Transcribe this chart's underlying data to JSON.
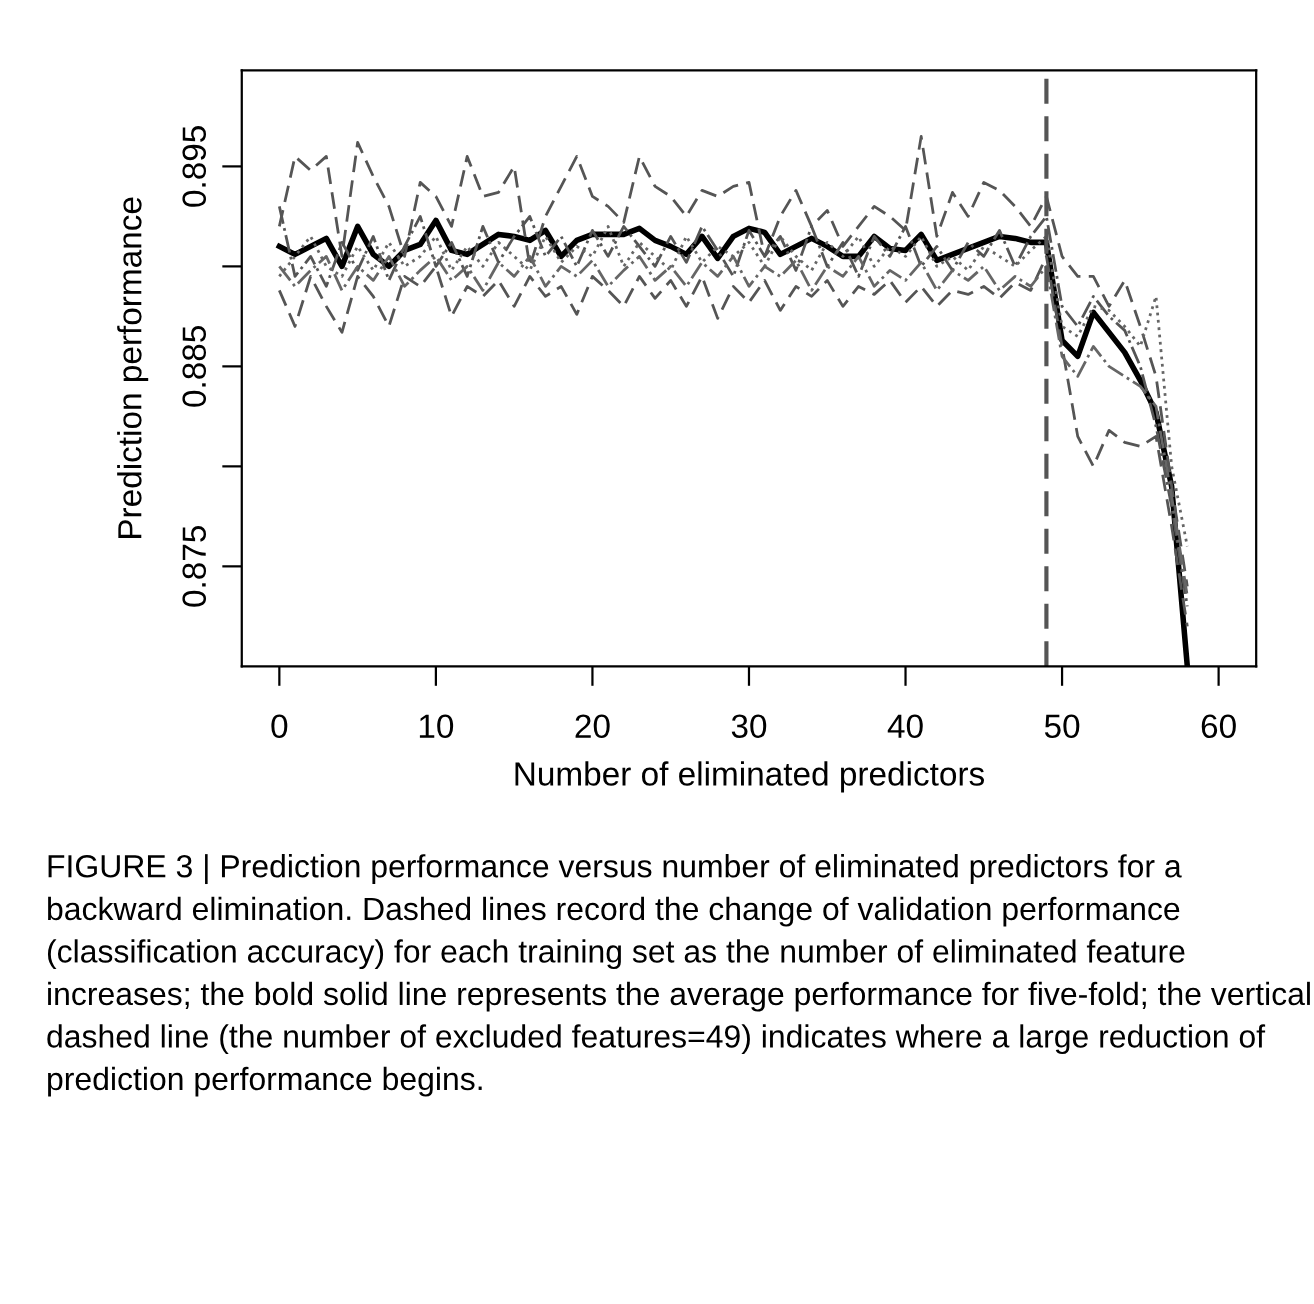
{
  "chart_data": {
    "type": "line",
    "xlabel": "Number of eliminated predictors",
    "ylabel": "Prediction performance",
    "x": [
      0,
      1,
      2,
      3,
      4,
      5,
      6,
      7,
      8,
      9,
      10,
      11,
      12,
      13,
      14,
      15,
      16,
      17,
      18,
      19,
      20,
      21,
      22,
      23,
      24,
      25,
      26,
      27,
      28,
      29,
      30,
      31,
      32,
      33,
      34,
      35,
      36,
      37,
      38,
      39,
      40,
      41,
      42,
      43,
      44,
      45,
      46,
      47,
      48,
      49,
      50,
      51,
      52,
      53,
      54,
      55,
      56,
      57,
      58
    ],
    "xlim": [
      -2.4,
      62.4
    ],
    "xticks": [
      0,
      10,
      20,
      30,
      40,
      50,
      60
    ],
    "ylim": [
      0.87,
      0.8998
    ],
    "yticks": [
      0.875,
      {
        "value": 0.88,
        "label": null
      },
      0.885,
      {
        "value": 0.89,
        "label": null
      },
      0.895
    ],
    "grid": false,
    "legend": false,
    "marker": "none",
    "series": [
      {
        "color": "#000000",
        "line_style": "solid",
        "values": [
          0.891,
          0.8906,
          0.891,
          0.8914,
          0.89,
          0.892,
          0.8906,
          0.89,
          0.8908,
          0.8911,
          0.8923,
          0.8908,
          0.8906,
          0.8911,
          0.8916,
          0.8915,
          0.8913,
          0.8918,
          0.8905,
          0.8913,
          0.8916,
          0.8916,
          0.8916,
          0.8919,
          0.8913,
          0.891,
          0.8906,
          0.8915,
          0.8904,
          0.8915,
          0.8919,
          0.8917,
          0.8906,
          0.891,
          0.8914,
          0.891,
          0.8905,
          0.8905,
          0.8915,
          0.8909,
          0.8908,
          0.8916,
          0.8903,
          0.8906,
          0.8909,
          0.8912,
          0.8915,
          0.8914,
          0.8912,
          0.8912,
          0.8863,
          0.8855,
          0.8877,
          0.8867,
          0.8857,
          0.8843,
          0.8827,
          0.879,
          0.87
        ]
      },
      {
        "color": "#555555",
        "line_style": "dashed",
        "values": [
          0.892,
          0.8955,
          0.8948,
          0.8955,
          0.8905,
          0.8962,
          0.8945,
          0.893,
          0.8905,
          0.8942,
          0.8935,
          0.892,
          0.8955,
          0.8935,
          0.8937,
          0.895,
          0.89,
          0.8925,
          0.894,
          0.8955,
          0.8935,
          0.893,
          0.8922,
          0.8955,
          0.894,
          0.8935,
          0.8925,
          0.8938,
          0.8935,
          0.894,
          0.8942,
          0.8905,
          0.8925,
          0.8938,
          0.892,
          0.8928,
          0.891,
          0.892,
          0.893,
          0.8925,
          0.8918,
          0.8965,
          0.8915,
          0.8937,
          0.8925,
          0.8942,
          0.8938,
          0.893,
          0.892,
          0.8935,
          0.8905,
          0.8895,
          0.8895,
          0.888,
          0.8893,
          0.887,
          0.8845,
          0.879,
          0.874
        ]
      },
      {
        "color": "#555555",
        "line_style": "dashed",
        "values": [
          0.8888,
          0.887,
          0.8895,
          0.888,
          0.8867,
          0.8895,
          0.8885,
          0.887,
          0.8895,
          0.889,
          0.89,
          0.8875,
          0.889,
          0.8885,
          0.8893,
          0.888,
          0.8895,
          0.8885,
          0.889,
          0.8876,
          0.8895,
          0.8888,
          0.888,
          0.8895,
          0.8884,
          0.8893,
          0.888,
          0.8895,
          0.8874,
          0.889,
          0.8882,
          0.8893,
          0.8878,
          0.889,
          0.8885,
          0.8893,
          0.888,
          0.889,
          0.8886,
          0.8893,
          0.8882,
          0.889,
          0.888,
          0.8888,
          0.8886,
          0.889,
          0.8884,
          0.8892,
          0.8888,
          0.8905,
          0.886,
          0.8815,
          0.88,
          0.8818,
          0.8812,
          0.881,
          0.8815,
          0.877,
          0.872
        ]
      },
      {
        "color": "#555555",
        "line_style": "dashdot",
        "values": [
          0.893,
          0.8895,
          0.8905,
          0.889,
          0.8912,
          0.8898,
          0.8915,
          0.8893,
          0.891,
          0.8925,
          0.89,
          0.8912,
          0.8895,
          0.892,
          0.8902,
          0.8915,
          0.8925,
          0.8905,
          0.8915,
          0.89,
          0.8918,
          0.8905,
          0.892,
          0.891,
          0.89,
          0.8915,
          0.8902,
          0.892,
          0.8908,
          0.8895,
          0.8918,
          0.8905,
          0.8915,
          0.8898,
          0.892,
          0.89,
          0.8912,
          0.8895,
          0.8915,
          0.8905,
          0.892,
          0.89,
          0.891,
          0.8898,
          0.8912,
          0.8905,
          0.8918,
          0.89,
          0.8915,
          0.8925,
          0.888,
          0.887,
          0.8885,
          0.8875,
          0.8868,
          0.885,
          0.882,
          0.878,
          0.873
        ]
      },
      {
        "color": "#666666",
        "line_style": "dotted",
        "values": [
          0.8895,
          0.8905,
          0.8915,
          0.89,
          0.8895,
          0.891,
          0.8898,
          0.8912,
          0.89,
          0.8905,
          0.8915,
          0.8898,
          0.891,
          0.89,
          0.8912,
          0.8905,
          0.8898,
          0.8915,
          0.8902,
          0.891,
          0.8905,
          0.892,
          0.89,
          0.8912,
          0.8905,
          0.8898,
          0.8915,
          0.8902,
          0.891,
          0.8905,
          0.8912,
          0.89,
          0.8915,
          0.8905,
          0.8898,
          0.8912,
          0.8905,
          0.8915,
          0.89,
          0.891,
          0.8905,
          0.8915,
          0.89,
          0.8905,
          0.8898,
          0.891,
          0.8905,
          0.89,
          0.8908,
          0.8915,
          0.887,
          0.8865,
          0.888,
          0.8878,
          0.887,
          0.886,
          0.8885,
          0.88,
          0.876
        ]
      },
      {
        "color": "#666666",
        "line_style": "dashdot",
        "values": [
          0.89,
          0.889,
          0.8898,
          0.8905,
          0.8888,
          0.89,
          0.8893,
          0.8905,
          0.889,
          0.8898,
          0.8905,
          0.8893,
          0.89,
          0.8888,
          0.8902,
          0.8895,
          0.8905,
          0.889,
          0.89,
          0.8895,
          0.8903,
          0.889,
          0.8898,
          0.8905,
          0.8893,
          0.89,
          0.889,
          0.8902,
          0.8895,
          0.8905,
          0.889,
          0.89,
          0.8895,
          0.8903,
          0.8888,
          0.89,
          0.8895,
          0.8905,
          0.889,
          0.8898,
          0.8893,
          0.8902,
          0.8888,
          0.8898,
          0.8893,
          0.89,
          0.8888,
          0.8895,
          0.889,
          0.89,
          0.8855,
          0.8845,
          0.886,
          0.885,
          0.8845,
          0.884,
          0.883,
          0.8785,
          0.8735
        ]
      }
    ],
    "ref_lines": [
      {
        "axis": "x",
        "value": 49,
        "color": "#555555",
        "line_style": "dashed"
      }
    ],
    "annotations": [
      "FIGURE 3 | Prediction performance versus number of eliminated predictors for a backward elimination. Dashed lines record the change of validation performance (classification accuracy) for each training set as the number of eliminated feature increases; the bold solid line represents the average performance for five-fold; the vertical dashed line (the number of excluded features=49) indicates where a large reduction of prediction performance begins."
    ]
  }
}
